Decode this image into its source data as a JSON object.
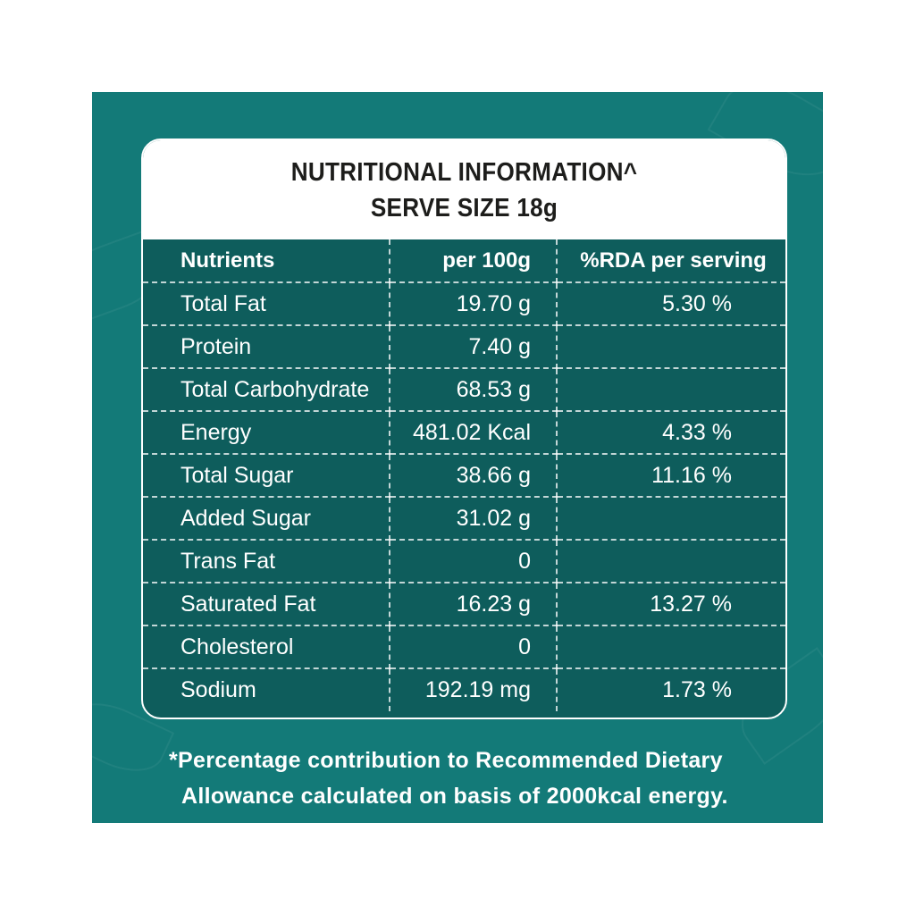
{
  "header": {
    "title": "NUTRITIONAL INFORMATION^",
    "serve_size": "SERVE SIZE 18g"
  },
  "table": {
    "columns": [
      "Nutrients",
      "per 100g",
      "%RDA per serving"
    ],
    "rows": [
      {
        "nutrient": "Total Fat",
        "per100g": "19.70 g",
        "rda": "5.30 %"
      },
      {
        "nutrient": "Protein",
        "per100g": "7.40 g",
        "rda": ""
      },
      {
        "nutrient": "Total Carbohydrate",
        "per100g": "68.53 g",
        "rda": ""
      },
      {
        "nutrient": "Energy",
        "per100g": "481.02 Kcal",
        "rda": "4.33 %"
      },
      {
        "nutrient": "Total Sugar",
        "per100g": "38.66 g",
        "rda": "11.16 %"
      },
      {
        "nutrient": "Added Sugar",
        "per100g": "31.02 g",
        "rda": ""
      },
      {
        "nutrient": "Trans Fat",
        "per100g": "0",
        "rda": ""
      },
      {
        "nutrient": "Saturated Fat",
        "per100g": "16.23 g",
        "rda": "13.27 %"
      },
      {
        "nutrient": "Cholesterol",
        "per100g": "0",
        "rda": ""
      },
      {
        "nutrient": "Sodium",
        "per100g": "192.19 mg",
        "rda": "1.73 %"
      }
    ]
  },
  "footnote": {
    "line1": "*Percentage contribution to Recommended Dietary",
    "line2": "Allowance calculated on basis of 2000kcal energy."
  },
  "colors": {
    "panel": "#137a78",
    "table_bg": "#0e5d5c",
    "header_bg": "#ffffff",
    "header_text": "#1d1d1b"
  }
}
